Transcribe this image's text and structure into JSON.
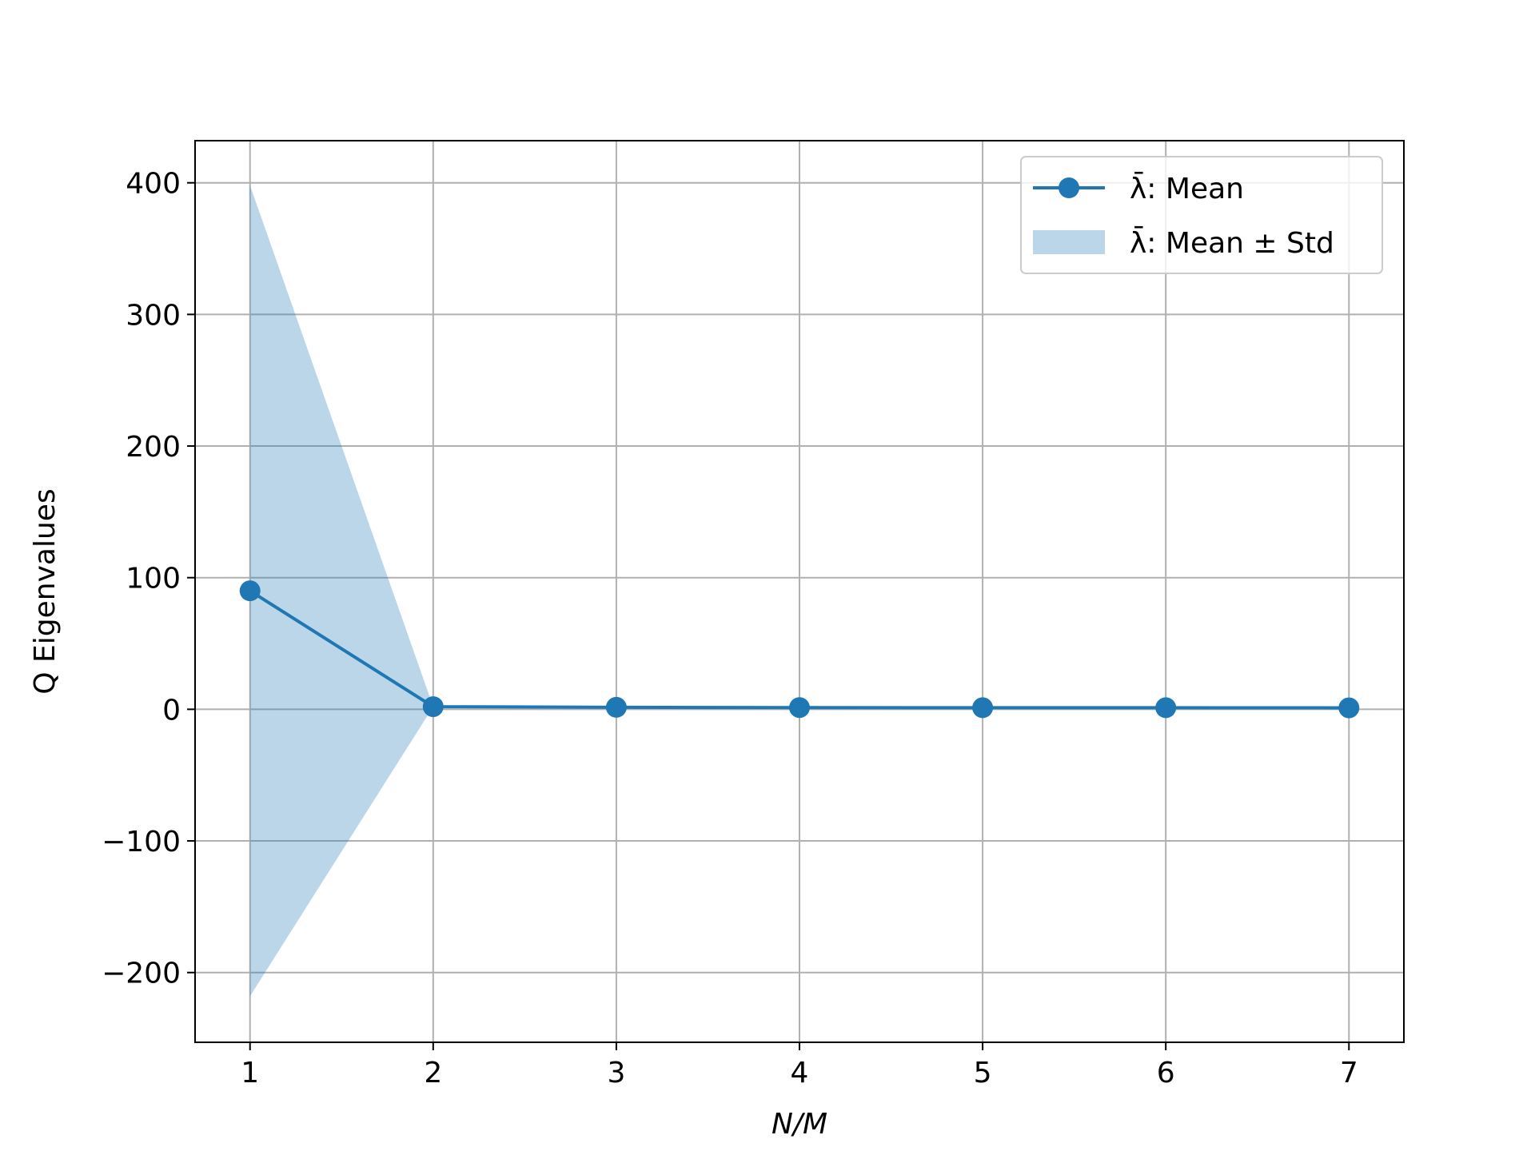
{
  "chart_data": {
    "type": "line",
    "title": "",
    "xlabel": "N/M",
    "ylabel": "Q Eigenvalues",
    "x": [
      1,
      2,
      3,
      4,
      5,
      6,
      7
    ],
    "xticks": [
      "1",
      "2",
      "3",
      "4",
      "5",
      "6",
      "7"
    ],
    "yticks": [
      "−200",
      "−100",
      "0",
      "100",
      "200",
      "300",
      "400"
    ],
    "xlim": [
      0.7,
      7.3
    ],
    "ylim": [
      -253,
      432
    ],
    "grid": true,
    "legend_position": "top-right",
    "series": [
      {
        "name": "λ̄: Mean",
        "kind": "line-marker",
        "color": "#1f77b4",
        "values": [
          90,
          2,
          1.5,
          1.3,
          1.2,
          1.2,
          1.1
        ]
      },
      {
        "name": "λ̄: Mean ± Std",
        "kind": "band",
        "color": "#1f77b4",
        "lower": [
          -218,
          2,
          1.5,
          1.3,
          1.2,
          1.2,
          1.1
        ],
        "upper": [
          398,
          2,
          1.5,
          1.3,
          1.2,
          1.2,
          1.1
        ]
      }
    ]
  }
}
